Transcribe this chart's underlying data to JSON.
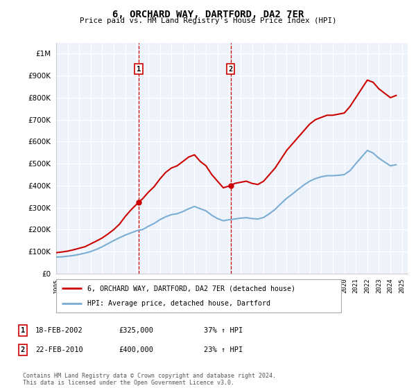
{
  "title": "6, ORCHARD WAY, DARTFORD, DA2 7ER",
  "subtitle": "Price paid vs. HM Land Registry's House Price Index (HPI)",
  "footer": "Contains HM Land Registry data © Crown copyright and database right 2024.\nThis data is licensed under the Open Government Licence v3.0.",
  "legend_entry1": "6, ORCHARD WAY, DARTFORD, DA2 7ER (detached house)",
  "legend_entry2": "HPI: Average price, detached house, Dartford",
  "annotation1_label": "1",
  "annotation1_date": "18-FEB-2002",
  "annotation1_price": "£325,000",
  "annotation1_hpi": "37% ↑ HPI",
  "annotation2_label": "2",
  "annotation2_date": "22-FEB-2010",
  "annotation2_price": "£400,000",
  "annotation2_hpi": "23% ↑ HPI",
  "red_color": "#cc0000",
  "blue_color": "#7aadd4",
  "grid_color": "#dddddd",
  "background_color": "#ffffff",
  "plot_bg_color": "#eef2fa",
  "annotation_line_color": "#cc0000",
  "years": [
    1995,
    1996,
    1997,
    1998,
    1999,
    2000,
    2001,
    2002,
    2003,
    2004,
    2005,
    2006,
    2007,
    2008,
    2009,
    2010,
    2011,
    2012,
    2013,
    2014,
    2015,
    2016,
    2017,
    2018,
    2019,
    2020,
    2021,
    2022,
    2023,
    2024,
    2025
  ],
  "red_x": [
    1995.0,
    1995.5,
    1996.0,
    1996.5,
    1997.0,
    1997.5,
    1998.0,
    1998.5,
    1999.0,
    1999.5,
    2000.0,
    2000.5,
    2001.0,
    2001.5,
    2002.17,
    2002.5,
    2003.0,
    2003.5,
    2004.0,
    2004.5,
    2005.0,
    2005.5,
    2006.0,
    2006.5,
    2007.0,
    2007.5,
    2008.0,
    2008.5,
    2009.0,
    2009.5,
    2010.13,
    2010.5,
    2011.0,
    2011.5,
    2012.0,
    2012.5,
    2013.0,
    2013.5,
    2014.0,
    2014.5,
    2015.0,
    2015.5,
    2016.0,
    2016.5,
    2017.0,
    2017.5,
    2018.0,
    2018.5,
    2019.0,
    2019.5,
    2020.0,
    2020.5,
    2021.0,
    2021.5,
    2022.0,
    2022.5,
    2023.0,
    2023.5,
    2024.0,
    2024.5
  ],
  "red_y": [
    95000,
    98000,
    102000,
    108000,
    115000,
    122000,
    135000,
    148000,
    162000,
    180000,
    200000,
    225000,
    260000,
    290000,
    325000,
    340000,
    370000,
    395000,
    430000,
    460000,
    480000,
    490000,
    510000,
    530000,
    540000,
    510000,
    490000,
    450000,
    420000,
    390000,
    400000,
    410000,
    415000,
    420000,
    410000,
    405000,
    420000,
    450000,
    480000,
    520000,
    560000,
    590000,
    620000,
    650000,
    680000,
    700000,
    710000,
    720000,
    720000,
    725000,
    730000,
    760000,
    800000,
    840000,
    880000,
    870000,
    840000,
    820000,
    800000,
    810000
  ],
  "blue_x": [
    1995.0,
    1995.5,
    1996.0,
    1996.5,
    1997.0,
    1997.5,
    1998.0,
    1998.5,
    1999.0,
    1999.5,
    2000.0,
    2000.5,
    2001.0,
    2001.5,
    2002.0,
    2002.5,
    2003.0,
    2003.5,
    2004.0,
    2004.5,
    2005.0,
    2005.5,
    2006.0,
    2006.5,
    2007.0,
    2007.5,
    2008.0,
    2008.5,
    2009.0,
    2009.5,
    2010.0,
    2010.5,
    2011.0,
    2011.5,
    2012.0,
    2012.5,
    2013.0,
    2013.5,
    2014.0,
    2014.5,
    2015.0,
    2015.5,
    2016.0,
    2016.5,
    2017.0,
    2017.5,
    2018.0,
    2018.5,
    2019.0,
    2019.5,
    2020.0,
    2020.5,
    2021.0,
    2021.5,
    2022.0,
    2022.5,
    2023.0,
    2023.5,
    2024.0,
    2024.5
  ],
  "blue_y": [
    75000,
    76000,
    79000,
    82000,
    87000,
    93000,
    100000,
    110000,
    122000,
    136000,
    150000,
    163000,
    175000,
    185000,
    195000,
    200000,
    215000,
    228000,
    245000,
    258000,
    268000,
    272000,
    282000,
    295000,
    305000,
    295000,
    285000,
    265000,
    250000,
    240000,
    245000,
    248000,
    252000,
    254000,
    250000,
    248000,
    255000,
    272000,
    292000,
    318000,
    342000,
    362000,
    383000,
    403000,
    420000,
    432000,
    440000,
    445000,
    445000,
    447000,
    450000,
    468000,
    500000,
    530000,
    560000,
    548000,
    525000,
    507000,
    490000,
    495000
  ],
  "sale1_x": 2002.17,
  "sale1_y": 325000,
  "sale2_x": 2010.13,
  "sale2_y": 400000,
  "ylim_min": 0,
  "ylim_max": 1050000,
  "xlim_min": 1995,
  "xlim_max": 2025.5,
  "yticks": [
    0,
    100000,
    200000,
    300000,
    400000,
    500000,
    600000,
    700000,
    800000,
    900000,
    1000000
  ]
}
